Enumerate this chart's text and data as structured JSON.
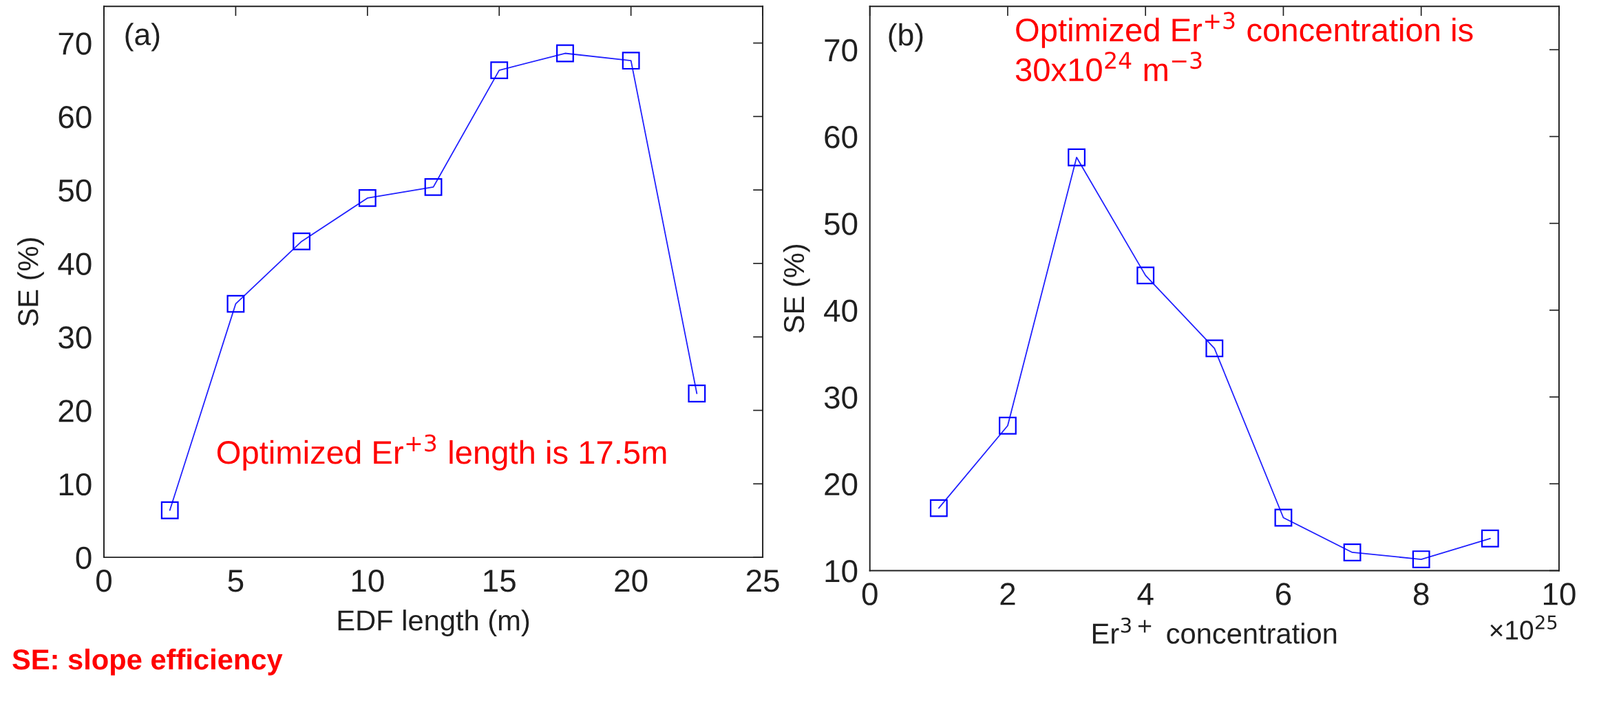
{
  "chart_data": [
    {
      "type": "line",
      "xlabel": "EDF length (m)",
      "ylabel": "SE (%)",
      "x": [
        2.5,
        5,
        7.5,
        10,
        12.5,
        15,
        17.5,
        20,
        22.5
      ],
      "series": [
        {
          "color": "#2020ff",
          "values": [
            6.4,
            34.5,
            43.0,
            48.9,
            50.4,
            66.3,
            68.6,
            67.6,
            22.3
          ]
        }
      ],
      "marker": "square",
      "line_style": "solid",
      "grid": false,
      "xlim": [
        0,
        25
      ],
      "xticks": [
        0,
        5,
        10,
        15,
        20,
        25
      ],
      "ylim": [
        0,
        75
      ],
      "yticks": [
        0,
        10,
        20,
        30,
        40,
        50,
        60,
        70
      ],
      "annotations": [
        "(a)",
        "Optimized Er$^{+3}$ length is 17.5m",
        "SE: slope efficiency"
      ]
    },
    {
      "type": "line",
      "xlabel": "Er$^{3+}$ concentration",
      "ylabel": "SE (%)",
      "x": [
        1,
        2,
        3,
        4,
        5,
        6,
        7,
        8,
        9
      ],
      "series": [
        {
          "color": "#2020ff",
          "values": [
            17.2,
            26.7,
            57.6,
            44.0,
            35.6,
            16.1,
            12.1,
            11.3,
            13.7
          ]
        }
      ],
      "marker": "square",
      "line_style": "solid",
      "grid": false,
      "xlim": [
        0,
        10
      ],
      "xticks": [
        0,
        2,
        4,
        6,
        8,
        10
      ],
      "ylim": [
        10,
        75
      ],
      "yticks": [
        10,
        20,
        30,
        40,
        50,
        60,
        70
      ],
      "annotations": [
        "(b)",
        "Optimized Er$^{+3}$ concentration is\n30x10$^{24}$ m$^{−3}$",
        "×10$^{25}$"
      ]
    }
  ]
}
